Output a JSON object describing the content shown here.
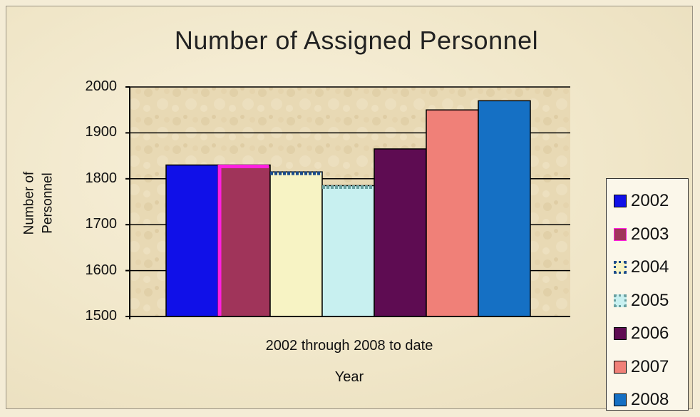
{
  "chart_data": {
    "type": "bar",
    "title": "Number of Assigned Personnel",
    "xlabel_subtitle": "2002 through 2008 to date",
    "xlabel": "Year",
    "ylabel": "Number of Personnel",
    "ylim": [
      1500,
      2000
    ],
    "yticks": [
      "1500",
      "1600",
      "1700",
      "1800",
      "1900",
      "2000"
    ],
    "grid": true,
    "legend_position": "right",
    "series": [
      {
        "name": "2002",
        "value": 1830,
        "color": "#1010e8"
      },
      {
        "name": "2003",
        "value": 1830,
        "color": "#a0345a"
      },
      {
        "name": "2004",
        "value": 1815,
        "color": "#f7f3c4"
      },
      {
        "name": "2005",
        "value": 1785,
        "color": "#c8f0f0"
      },
      {
        "name": "2006",
        "value": 1865,
        "color": "#5e0c52"
      },
      {
        "name": "2007",
        "value": 1950,
        "color": "#f08078"
      },
      {
        "name": "2008",
        "value": 1970,
        "color": "#1570c4"
      }
    ]
  }
}
